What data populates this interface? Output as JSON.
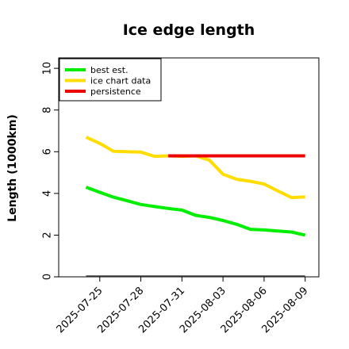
{
  "chart_data": {
    "type": "line",
    "title": "Ice edge length",
    "xlabel": "",
    "ylabel": "Length (1000km)",
    "ylim": [
      0,
      10.5
    ],
    "xlim": [
      "2025-07-22",
      "2025-08-10"
    ],
    "yticks": [
      0,
      2,
      4,
      6,
      8,
      10
    ],
    "xticks": [
      "2025-07-25",
      "2025-07-28",
      "2025-07-31",
      "2025-08-03",
      "2025-08-06",
      "2025-08-09"
    ],
    "grid": false,
    "legend_position": "top-left",
    "series": [
      {
        "name": "best est.",
        "color": "#00ee00",
        "x": [
          "2025-07-24",
          "2025-07-25",
          "2025-07-26",
          "2025-07-27",
          "2025-07-28",
          "2025-07-29",
          "2025-07-30",
          "2025-07-31",
          "2025-08-01",
          "2025-08-02",
          "2025-08-03",
          "2025-08-04",
          "2025-08-05",
          "2025-08-06",
          "2025-08-07",
          "2025-08-08",
          "2025-08-09"
        ],
        "y": [
          4.3,
          4.05,
          3.82,
          3.65,
          3.47,
          3.37,
          3.28,
          3.2,
          2.95,
          2.85,
          2.7,
          2.52,
          2.28,
          2.25,
          2.2,
          2.15,
          2.0
        ]
      },
      {
        "name": "ice chart data",
        "color": "#ffdd00",
        "x": [
          "2025-07-24",
          "2025-07-25",
          "2025-07-26",
          "2025-07-27",
          "2025-07-28",
          "2025-07-29",
          "2025-07-30",
          "2025-07-31",
          "2025-08-01",
          "2025-08-02",
          "2025-08-03",
          "2025-08-04",
          "2025-08-05",
          "2025-08-06",
          "2025-08-07",
          "2025-08-08",
          "2025-08-09"
        ],
        "y": [
          6.7,
          6.4,
          6.02,
          6.0,
          5.98,
          5.78,
          5.8,
          5.78,
          5.8,
          5.6,
          4.92,
          4.68,
          4.58,
          4.45,
          4.12,
          3.8,
          3.83
        ]
      },
      {
        "name": "persistence",
        "color": "#ee0000",
        "x": [
          "2025-07-30",
          "2025-08-09"
        ],
        "y": [
          5.8,
          5.8
        ]
      },
      {
        "color": "#666666",
        "x": [
          "2025-07-24",
          "2025-08-09"
        ],
        "y": [
          0.05,
          0.05
        ]
      }
    ]
  }
}
